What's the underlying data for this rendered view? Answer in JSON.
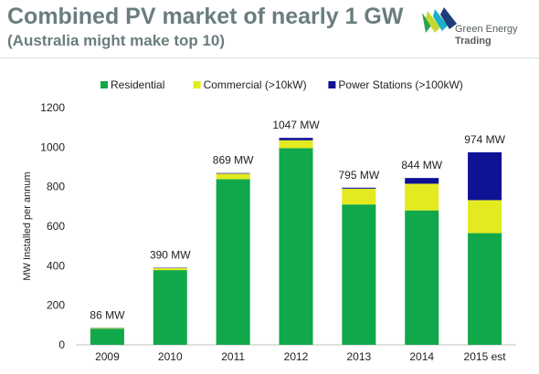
{
  "header": {
    "title": "Combined PV market of nearly 1 GW",
    "subtitle": "(Australia might make top 10)"
  },
  "logo": {
    "line1": "Green Energy",
    "line2": "Trading",
    "icon": "green-energy-trading-logo",
    "colors": [
      "#2e9e4f",
      "#c4d82e",
      "#1ab0c8",
      "#1f3d7a"
    ]
  },
  "chart_data": {
    "type": "bar",
    "stacked": true,
    "categories": [
      "2009",
      "2010",
      "2011",
      "2012",
      "2013",
      "2014",
      "2015 est"
    ],
    "series": [
      {
        "name": "Residential",
        "color": "#10a84a",
        "values": [
          82,
          378,
          838,
          995,
          710,
          680,
          565
        ]
      },
      {
        "name": "Commercial (>10kW)",
        "color": "#e3ea1f",
        "values": [
          3,
          10,
          28,
          40,
          80,
          135,
          167
        ]
      },
      {
        "name": "Power Stations (>100kW)",
        "color": "#0f1295",
        "values": [
          1,
          2,
          3,
          12,
          5,
          29,
          242
        ]
      }
    ],
    "totals": [
      86,
      390,
      869,
      1047,
      795,
      844,
      974
    ],
    "total_labels": [
      "86 MW",
      "390 MW",
      "869 MW",
      "1047 MW",
      "795 MW",
      "844 MW",
      "974 MW"
    ],
    "ylabel": "MW Installed per annum",
    "xlabel": "",
    "ylim": [
      0,
      1200
    ],
    "yticks": [
      0,
      200,
      400,
      600,
      800,
      1000,
      1200
    ],
    "legend_position": "top",
    "grid": false
  }
}
